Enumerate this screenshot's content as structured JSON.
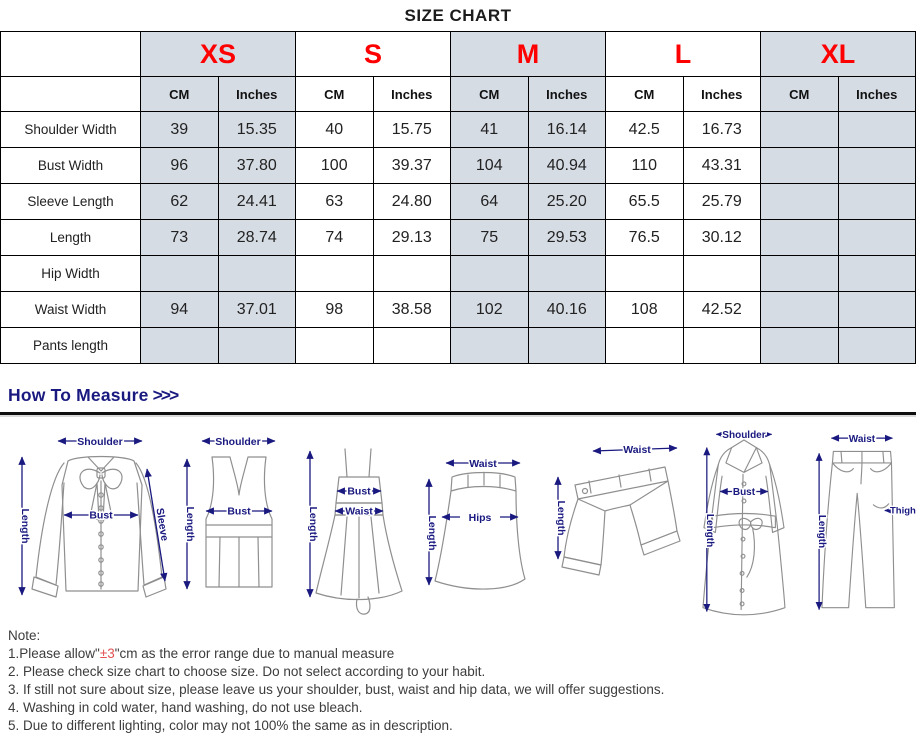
{
  "title": "SIZE CHART",
  "size_chart": {
    "sizes": [
      "XS",
      "S",
      "M",
      "L",
      "XL"
    ],
    "unit_headers": [
      "CM",
      "Inches"
    ],
    "shaded_size_groups": [
      0,
      2,
      4
    ],
    "rows": [
      {
        "label": "Shoulder Width",
        "values": [
          "39",
          "15.35",
          "40",
          "15.75",
          "41",
          "16.14",
          "42.5",
          "16.73",
          "",
          ""
        ]
      },
      {
        "label": "Bust Width",
        "values": [
          "96",
          "37.80",
          "100",
          "39.37",
          "104",
          "40.94",
          "110",
          "43.31",
          "",
          ""
        ]
      },
      {
        "label": "Sleeve Length",
        "values": [
          "62",
          "24.41",
          "63",
          "24.80",
          "64",
          "25.20",
          "65.5",
          "25.79",
          "",
          ""
        ]
      },
      {
        "label": "Length",
        "values": [
          "73",
          "28.74",
          "74",
          "29.13",
          "75",
          "29.53",
          "76.5",
          "30.12",
          "",
          ""
        ]
      },
      {
        "label": "Hip Width",
        "values": [
          "",
          "",
          "",
          "",
          "",
          "",
          "",
          "",
          "",
          ""
        ]
      },
      {
        "label": "Waist Width",
        "values": [
          "94",
          "37.01",
          "98",
          "38.58",
          "102",
          "40.16",
          "108",
          "42.52",
          "",
          ""
        ]
      },
      {
        "label": "Pants length",
        "values": [
          "",
          "",
          "",
          "",
          "",
          "",
          "",
          "",
          "",
          ""
        ]
      }
    ]
  },
  "measure": {
    "heading": "How To Measure",
    "arrows": ">>>",
    "diagrams": [
      {
        "name": "blouse",
        "labels": {
          "shoulder": "Shoulder",
          "length": "Length",
          "bust": "Bust",
          "sleeve": "Sleeve"
        }
      },
      {
        "name": "tank-top",
        "labels": {
          "shoulder": "Shoulder",
          "length": "Length",
          "bust": "Bust"
        }
      },
      {
        "name": "dress",
        "labels": {
          "length": "Length",
          "bust": "Bust",
          "waist": "Waist"
        }
      },
      {
        "name": "skirt",
        "labels": {
          "waist": "Waist",
          "length": "Length",
          "hips": "Hips"
        }
      },
      {
        "name": "shorts",
        "labels": {
          "waist": "Waist",
          "length": "Length"
        }
      },
      {
        "name": "coat",
        "labels": {
          "shoulder": "Shoulder",
          "bust": "Bust",
          "length": "Length"
        }
      },
      {
        "name": "pants",
        "labels": {
          "waist": "Waist",
          "length": "Length",
          "thigh": "Thigh"
        }
      }
    ]
  },
  "notes": {
    "heading": "Note:",
    "line1_prefix": "1.Please allow\"",
    "line1_red": "±3",
    "line1_suffix": "\"cm as the error range due to manual measure",
    "lines": [
      "2. Please check size chart to choose size. Do not select according to your habit.",
      "3. If still not sure about size, please leave us your shoulder, bust, waist and hip data, we will offer suggestions.",
      "4. Washing in cold water, hand washing, do not use bleach.",
      "5. Due to different lighting, color may not 100% the same as in description."
    ]
  },
  "colors": {
    "red": "#ff0000",
    "shade": "#d6dce4",
    "navy": "#191980",
    "note-red": "#e25252"
  }
}
